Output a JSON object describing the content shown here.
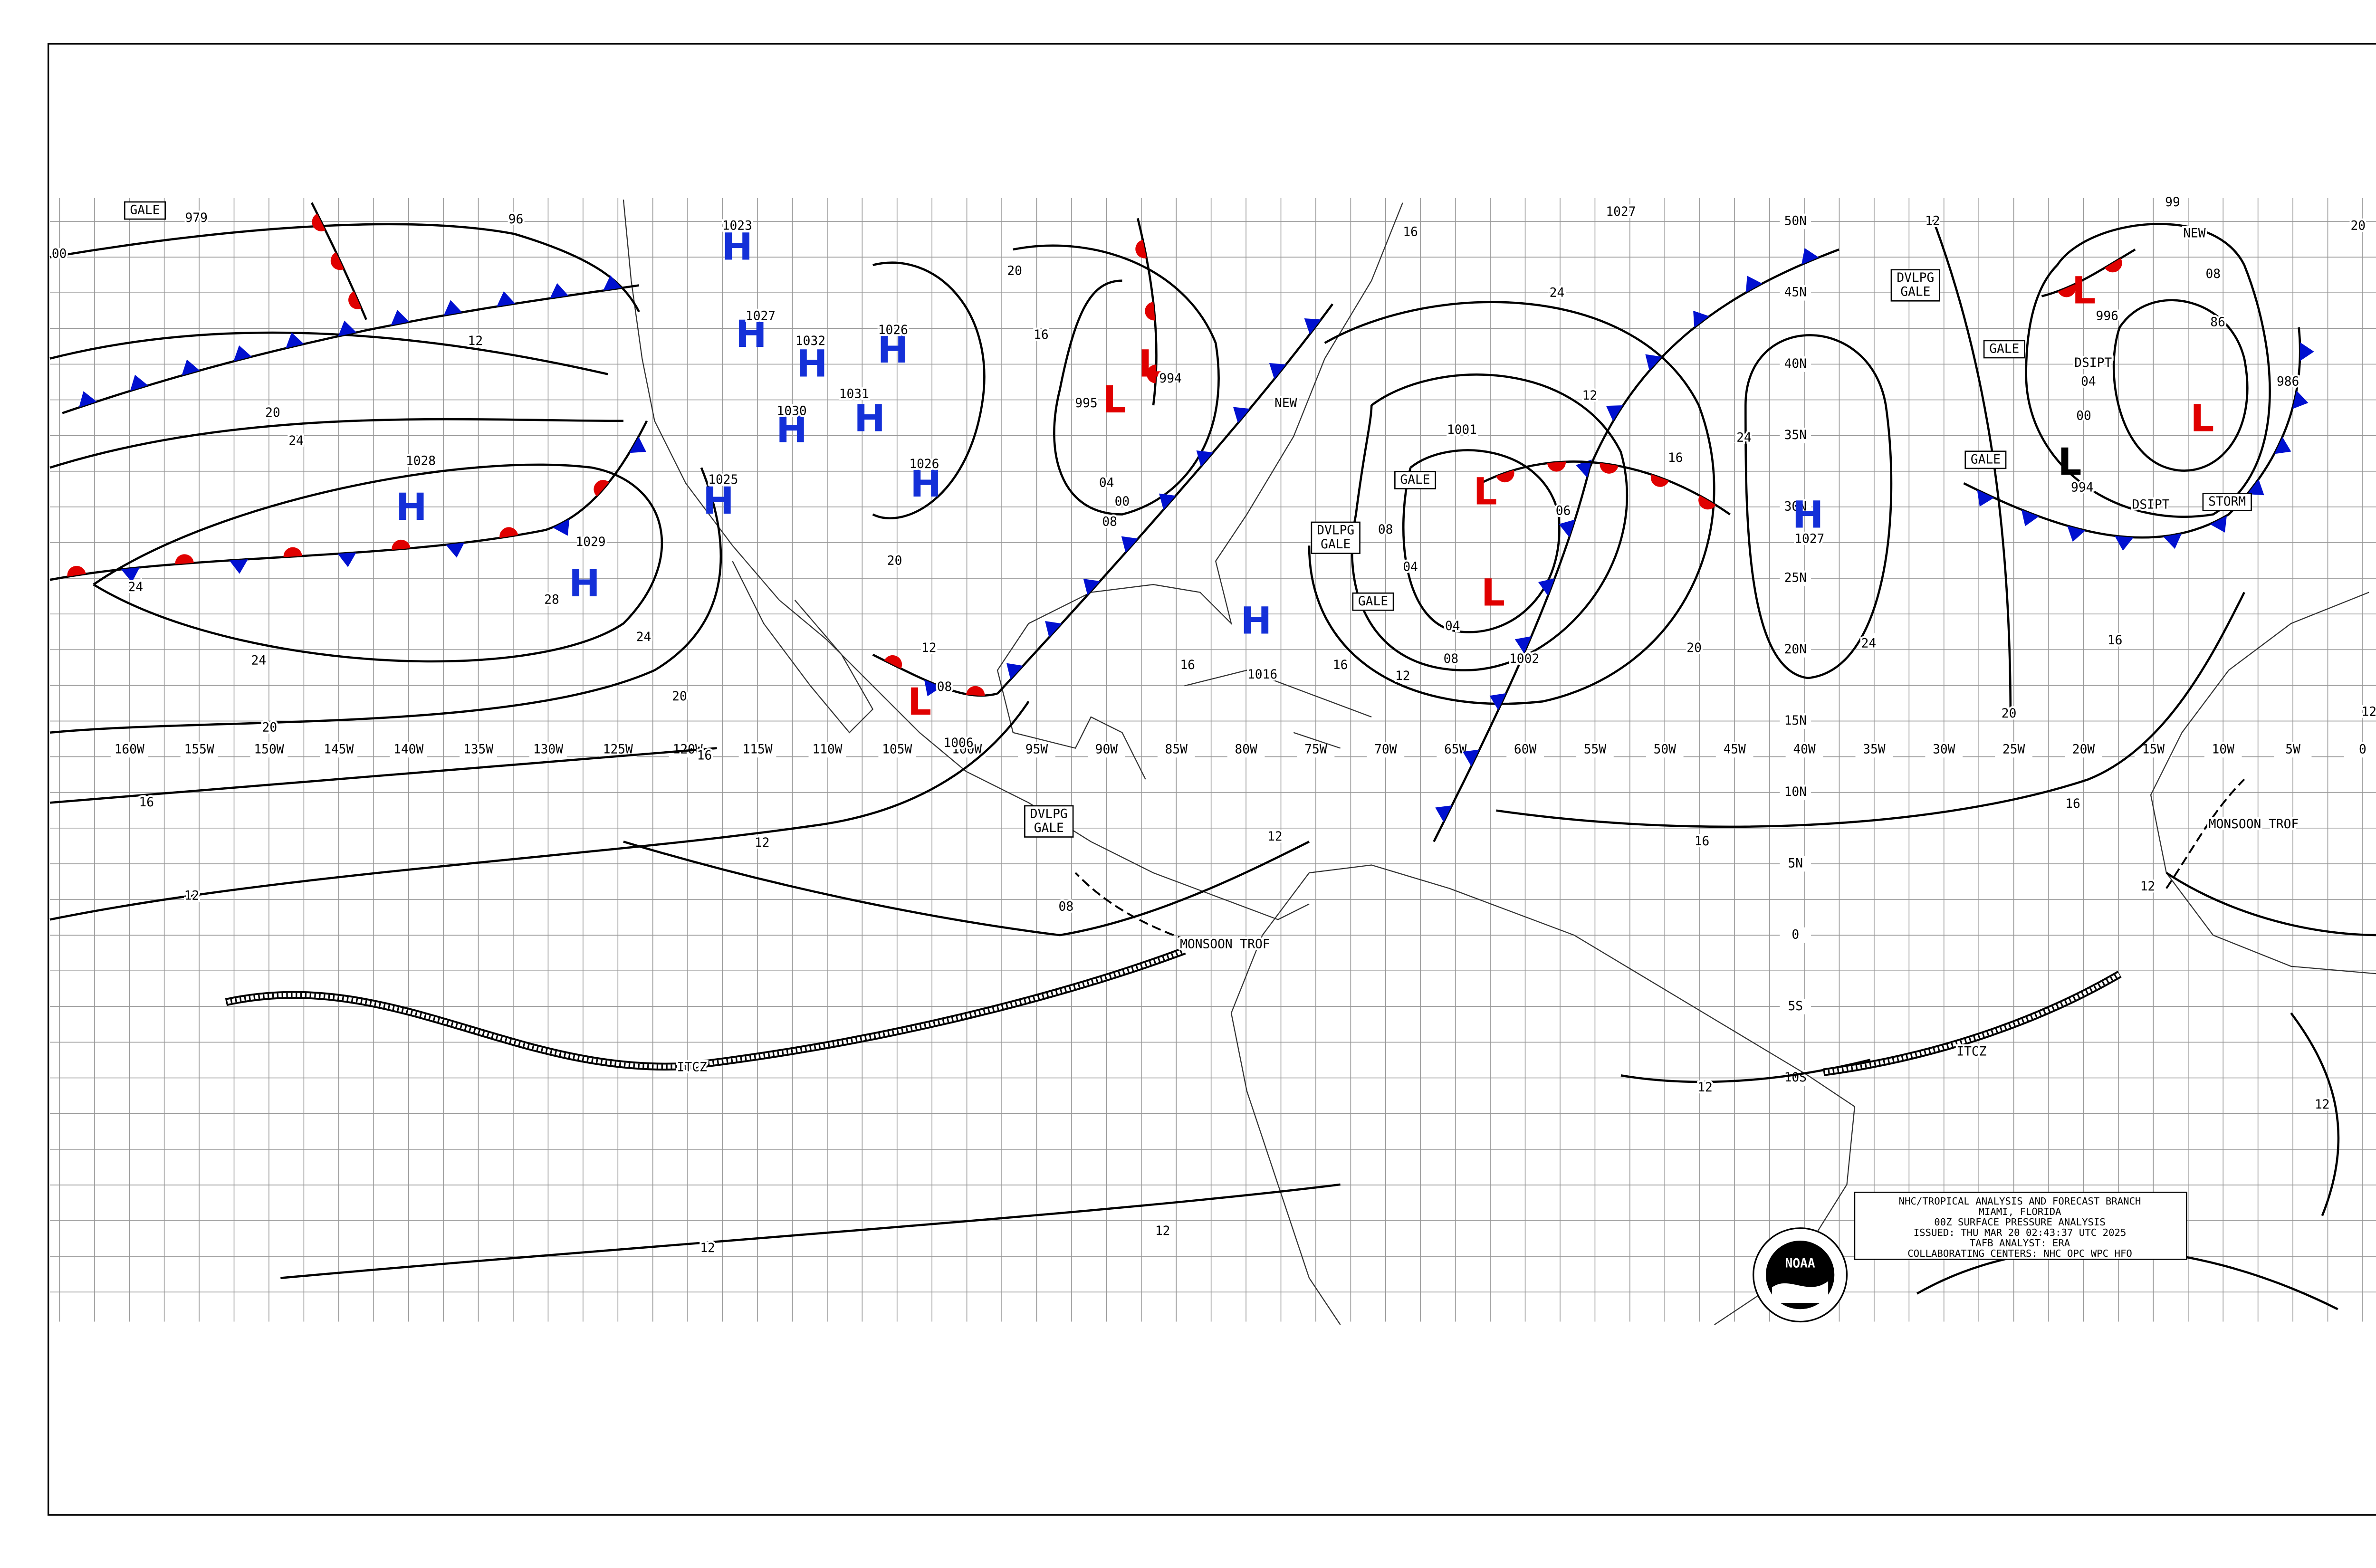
{
  "info_box": {
    "lines": [
      "NHC/TROPICAL ANALYSIS AND FORECAST BRANCH",
      "MIAMI, FLORIDA",
      "00Z SURFACE PRESSURE ANALYSIS",
      "ISSUED: THU MAR 20 02:43:37 UTC 2025",
      "TAFB ANALYST: ERA",
      "COLLABORATING CENTERS: NHC OPC WPC HFO"
    ]
  },
  "logo": "NOAA",
  "grid": {
    "longitudes": [
      "160W",
      "155W",
      "150W",
      "145W",
      "140W",
      "135W",
      "130W",
      "125W",
      "120W",
      "115W",
      "110W",
      "105W",
      "100W",
      "95W",
      "90W",
      "85W",
      "80W",
      "75W",
      "70W",
      "65W",
      "60W",
      "55W",
      "50W",
      "45W",
      "40W",
      "35W",
      "30W",
      "25W",
      "20W",
      "15W",
      "10W",
      "5W",
      "0"
    ],
    "latitudes": [
      "50N",
      "45N",
      "40N",
      "35N",
      "30N",
      "25N",
      "20N",
      "15N",
      "10N",
      "5N",
      "0",
      "5S",
      "10S"
    ]
  },
  "pressure_centers": [
    {
      "type": "H",
      "value": "1023"
    },
    {
      "type": "H",
      "value": "1027"
    },
    {
      "type": "H",
      "value": "1032"
    },
    {
      "type": "H",
      "value": "1026"
    },
    {
      "type": "H",
      "value": "1031"
    },
    {
      "type": "H",
      "value": "1030"
    },
    {
      "type": "H",
      "value": "1026"
    },
    {
      "type": "H",
      "value": "1025"
    },
    {
      "type": "H",
      "value": "1028"
    },
    {
      "type": "H",
      "value": "1029"
    },
    {
      "type": "H",
      "value": "1016"
    },
    {
      "type": "H",
      "value": "1027"
    },
    {
      "type": "L",
      "value": "995"
    },
    {
      "type": "L",
      "value": "994"
    },
    {
      "type": "L",
      "value": "1001"
    },
    {
      "type": "L",
      "value": "1002"
    },
    {
      "type": "L",
      "value": "1006"
    },
    {
      "type": "L",
      "value": "986"
    },
    {
      "type": "L",
      "value": "996"
    },
    {
      "type": "L",
      "value": "994"
    }
  ],
  "isobar_labels": [
    "979",
    "96",
    "00",
    "12",
    "20",
    "24",
    "24",
    "24",
    "28",
    "24",
    "20",
    "20",
    "16",
    "16",
    "12",
    "12",
    "08",
    "12",
    "12",
    "12",
    "12",
    "12",
    "16",
    "16",
    "16",
    "20",
    "20",
    "24",
    "24",
    "16",
    "12",
    "08",
    "04",
    "04",
    "08",
    "12",
    "16",
    "06",
    "12",
    "08",
    "86",
    "04",
    "00",
    "12",
    "99",
    "16",
    "12",
    "08",
    "20",
    "16",
    "04",
    "00",
    "08",
    "16",
    "24",
    "20",
    "12",
    "20",
    "1027"
  ],
  "feature_labels": [
    {
      "lines": [
        "GALE"
      ]
    },
    {
      "lines": [
        "GALE"
      ]
    },
    {
      "lines": [
        "GALE"
      ]
    },
    {
      "lines": [
        "GALE"
      ]
    },
    {
      "lines": [
        "GALE"
      ]
    },
    {
      "lines": [
        "DVLPG",
        "GALE"
      ]
    },
    {
      "lines": [
        "DVLPG",
        "GALE"
      ]
    },
    {
      "lines": [
        "DVLPG",
        "GALE"
      ]
    },
    {
      "lines": [
        "STORM"
      ]
    },
    {
      "lines": [
        "DSIPT"
      ]
    },
    {
      "lines": [
        "DSIPT"
      ]
    },
    {
      "lines": [
        "NEW"
      ]
    },
    {
      "lines": [
        "NEW"
      ]
    },
    {
      "lines": [
        "MONSOON TROF"
      ]
    },
    {
      "lines": [
        "MONSOON TROF"
      ]
    },
    {
      "lines": [
        "ITCZ"
      ]
    },
    {
      "lines": [
        "ITCZ"
      ]
    }
  ]
}
